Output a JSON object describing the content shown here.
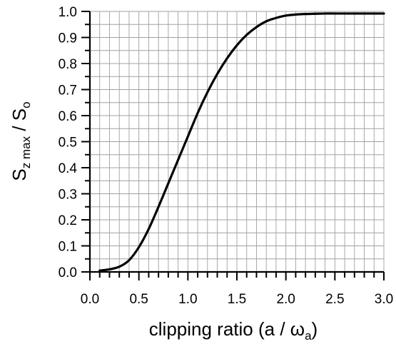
{
  "chart_data": {
    "type": "line",
    "title": "",
    "xlabel": {
      "text": "clipping ratio (a / ω",
      "subscript": "a",
      "suffix": ")"
    },
    "ylabel": {
      "base": "S",
      "subscript": "z max",
      "middle": " / S",
      "subscript2": "o"
    },
    "xlim": [
      0.0,
      3.0
    ],
    "ylim": [
      0.0,
      1.0
    ],
    "x_ticks": [
      "0.0",
      "0.5",
      "1.0",
      "1.5",
      "2.0",
      "2.5",
      "3.0"
    ],
    "y_ticks": [
      "0.0",
      "0.1",
      "0.2",
      "0.3",
      "0.4",
      "0.5",
      "0.6",
      "0.7",
      "0.8",
      "0.9",
      "1.0"
    ],
    "grid": true,
    "x_minor_step": 0.1,
    "y_minor_step": 0.05,
    "line_color": "#000000",
    "grid_color": "#a0a0a0",
    "series": [
      {
        "x": [
          0.1,
          0.2,
          0.3,
          0.4,
          0.5,
          0.6,
          0.7,
          0.8,
          0.9,
          1.0,
          1.1,
          1.2,
          1.3,
          1.4,
          1.5,
          1.6,
          1.7,
          1.8,
          1.9,
          2.0,
          2.1,
          2.2,
          2.3,
          2.4,
          2.5,
          2.6,
          2.7,
          2.8,
          2.9,
          3.0
        ],
        "y": [
          0.005,
          0.01,
          0.02,
          0.045,
          0.095,
          0.165,
          0.25,
          0.34,
          0.43,
          0.52,
          0.61,
          0.69,
          0.76,
          0.82,
          0.87,
          0.91,
          0.94,
          0.962,
          0.975,
          0.984,
          0.988,
          0.99,
          0.991,
          0.992,
          0.992,
          0.992,
          0.992,
          0.992,
          0.992,
          0.992
        ]
      }
    ]
  }
}
